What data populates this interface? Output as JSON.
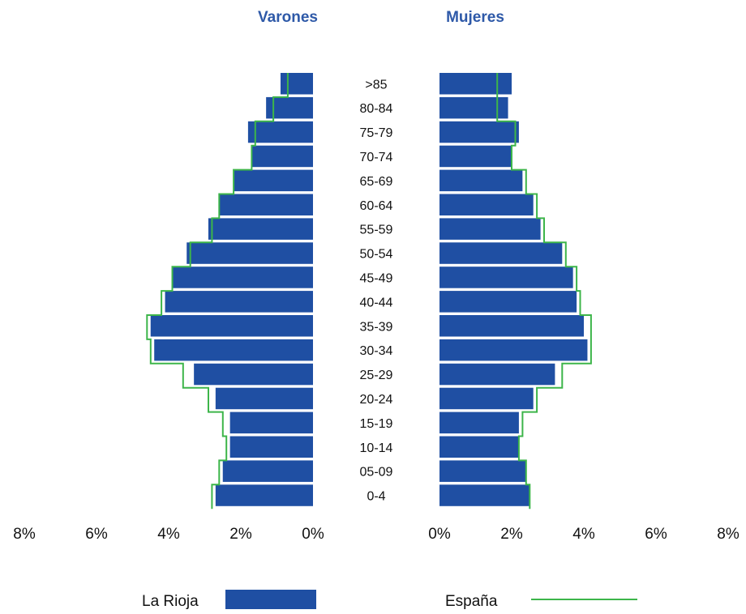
{
  "chart_data": {
    "type": "bar",
    "orientation": "horizontal-population-pyramid",
    "left_title": "Varones",
    "right_title": "Mujeres",
    "categories": [
      ">85",
      "80-84",
      "75-79",
      "70-74",
      "65-69",
      "60-64",
      "55-59",
      "50-54",
      "45-49",
      "40-44",
      "35-39",
      "30-34",
      "25-29",
      "20-24",
      "15-19",
      "10-14",
      "05-09",
      "0-4"
    ],
    "x_ticks_left": [
      "8%",
      "6%",
      "4%",
      "2%",
      "0%"
    ],
    "x_ticks_right": [
      "0%",
      "2%",
      "4%",
      "6%",
      "8%"
    ],
    "xlim": [
      0,
      8
    ],
    "unit": "%",
    "series": [
      {
        "name": "La Rioja",
        "style": "bars",
        "varones": [
          0.9,
          1.3,
          1.8,
          1.7,
          2.2,
          2.6,
          2.9,
          3.5,
          3.9,
          4.1,
          4.5,
          4.4,
          3.3,
          2.7,
          2.3,
          2.3,
          2.5,
          2.7
        ],
        "mujeres": [
          2.0,
          1.9,
          2.2,
          2.0,
          2.3,
          2.6,
          2.8,
          3.4,
          3.7,
          3.8,
          4.0,
          4.1,
          3.2,
          2.6,
          2.2,
          2.2,
          2.4,
          2.5
        ]
      },
      {
        "name": "España",
        "style": "step-line",
        "varones": [
          0.7,
          1.1,
          1.6,
          1.7,
          2.2,
          2.6,
          2.8,
          3.4,
          3.9,
          4.2,
          4.6,
          4.5,
          3.6,
          2.9,
          2.5,
          2.4,
          2.6,
          2.8
        ],
        "mujeres": [
          1.6,
          1.6,
          2.1,
          2.0,
          2.4,
          2.7,
          2.9,
          3.5,
          3.8,
          3.9,
          4.2,
          4.2,
          3.4,
          2.7,
          2.3,
          2.2,
          2.4,
          2.5
        ]
      }
    ],
    "colors": {
      "la_rioja": "#1f4fa3",
      "espana": "#3db54a",
      "titles": "#2e59a8"
    },
    "legend_position": "bottom",
    "grid": false
  }
}
